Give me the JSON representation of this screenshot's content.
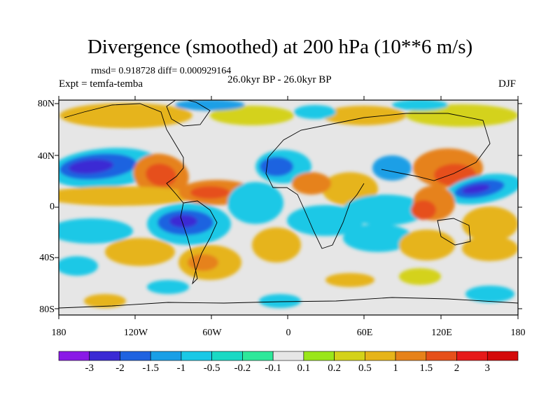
{
  "title": "Divergence (smoothed) at 200 hPa (10**6 m/s)",
  "stats": "rmsd= 0.918728 diff= 0.000929164",
  "experiment": "Expt = temfa-temba",
  "period": "26.0kyr BP - 26.0kyr BP",
  "season": "DJF",
  "latitude_labels": [
    "80N",
    "40N",
    "0",
    "40S",
    "80S"
  ],
  "longitude_labels": [
    "180",
    "120W",
    "60W",
    "0",
    "60E",
    "120E",
    "180"
  ],
  "colorbar": {
    "labels": [
      "-3",
      "-2",
      "-1.5",
      "-1",
      "-0.5",
      "-0.2",
      "-0.1",
      "0.1",
      "0.2",
      "0.5",
      "1",
      "1.5",
      "2",
      "3"
    ],
    "colors": [
      "#8a1ae6",
      "#3a2ad4",
      "#1f63e0",
      "#1a9fe6",
      "#1ac8e6",
      "#1ad9c4",
      "#2ee89a",
      "#e6e6e6",
      "#9ae61a",
      "#d4d21a",
      "#e6b41a",
      "#e6821a",
      "#e6501a",
      "#e61a1a",
      "#d40a0a"
    ]
  }
}
